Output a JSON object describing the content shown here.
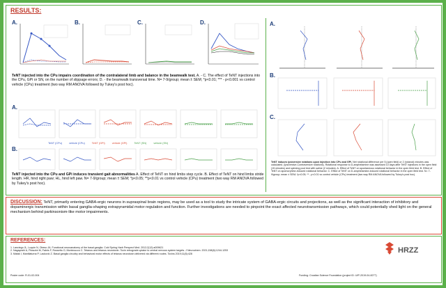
{
  "colors": {
    "frame": "#5bb04a",
    "header": "#c0392b",
    "blue": "#3456c4",
    "red": "#d94a35",
    "green": "#4aa04a",
    "navy": "#1f3f7a"
  },
  "results": {
    "heading": "RESULTS:",
    "letters": {
      "A": "A.",
      "B": "B.",
      "C": "C.",
      "D": "D."
    },
    "caption1_title": "TeNT injected into the CPu impairs coordination of the contralateral limb and balance in the beamwalk test.",
    "caption1_body": "A. - C. The effect of TeNT injections into the CPu, GPi or SN, on the number of slippage errors; D. - the beamwalk transversal time. N= 7-9/group; mean ± SEM; *p<0.01; *** - p<0.001 vs control vehicle (CPu) treatment (two way RM ANOVA followed by Tukey's post hoc).",
    "caption2_title": "TeNT injected into the CPu and GPi induces transient gait abnormalities",
    "caption2_body": "A. Effect of TeNT on hind limbs step cycle. B. Effect of TeNT on hind limbs stride length. HR, hind right paw; HL, hind left paw. N= 7-9/group; mean ± SEM; *p<0.05; **p<0.01 vs control vehicle (CPu) treatment (two way RM ANOVA followed by Tukey's post hoc).",
    "gait_legend": [
      "TeNT (CPu)",
      "vehicle (CPu)",
      "TeNT (GPi)",
      "vehicle (GPi)",
      "TeNT (SN)",
      "vehicle (SN)"
    ],
    "right_caption_title": "TeNT induces ipsiversive rotations upon injection into CPu and GPi.",
    "right_caption_body": "Net rotational difference per 5 (open field) or 2 (rotarod) minutes was calculated. (Ipsiversive-Contraversive rotations). Rotational response to D-amphetamine was assessed 10 days after TeNT injections in the open field (15 minutes) and spinning pool test with saline (2 minutes). A. Effect of TeNT on spontaneous rotational behavior in the open field test. B. Effect of TeNT on apomorphine-induced rotational behavior. C. Effect of TeNT on D-amphetamine-induced rotational behavior in the open field test. N= 7-9/group; mean ± SEM; *p<0.05; ** - p<0.01 vs control vehicle (CPu) treatment (two way RM ANOVA followed by Tukey's post hoc)."
  },
  "discussion": {
    "heading": "DISCUSSION:",
    "body": "TeNT, primarily entering GABA-ergic neurons in supraspinal brain regions, may be used as a tool to study the intricate system of GABA-ergic circuits and projections, as well as the significant interaction of inhibitory and dopaminergic transmission within basal ganglia-shaping extrapyramidal motor regulation and function. Further investigations are needed to pinpoint the exact affected neurotransmission pathways, which could potentially shed light on the general mechanism behind parkinsonism-like motor impairments."
  },
  "references": {
    "heading": "REFERENCES:",
    "items": [
      "1. Lanciego JL, Luquin N, Obeso JA. Functional neuroanatomy of the basal ganglia. Cold Spring Harb Perspect Med. 2012;2(12):a009621",
      "2. Nagayoshi A, Pirazzini M, Fabris F, Rossetto O, Montecucco C. Tetanus and tetanus neurotoxin. Toxin retrograde uptake to central nervous system targets. J Neurochem. 2021;158(6):1244-1253",
      "3. Matak I, Mantilaturna P, Lacković Z. Basal ganglia circuitry and behavioral motor effects of tetanus neurotoxin delivered via different routes. Toxins 2019;11(8):428"
    ],
    "poster_code": "Poster code: R-01-02-004",
    "funding": "Funding: Croatian Science Foundation (project ID: UIP-2019-04-8277)"
  },
  "logos": {
    "hrzz": "HRZZ"
  }
}
